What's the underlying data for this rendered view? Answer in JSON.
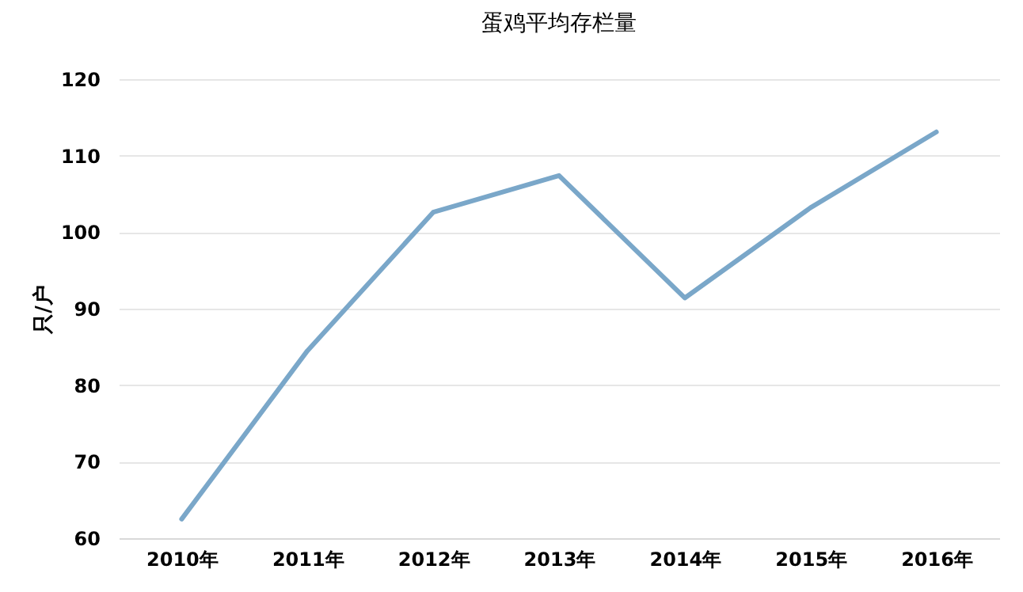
{
  "chart_data": {
    "type": "line",
    "title": "蛋鸡平均存栏量",
    "ylabel": "只/户",
    "categories": [
      "2010年",
      "2011年",
      "2012年",
      "2013年",
      "2014年",
      "2015年",
      "2016年"
    ],
    "series": [
      {
        "color": "#7aa7c9",
        "values": [
          62.5,
          84.5,
          102.6,
          107.4,
          91.4,
          103.2,
          113.1
        ]
      }
    ],
    "ylim": [
      60,
      120
    ],
    "yticks": [
      60,
      70,
      80,
      90,
      100,
      110,
      120
    ],
    "grid": "y",
    "marker": "none",
    "line_style": "solid"
  }
}
